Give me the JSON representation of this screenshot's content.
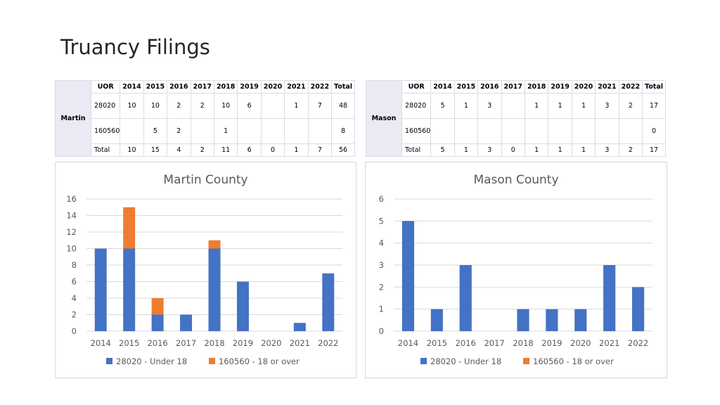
{
  "page": {
    "title": "Truancy Filings"
  },
  "tables": [
    {
      "label": "Martin",
      "header": [
        "UOR",
        "2014",
        "2015",
        "2016",
        "2017",
        "2018",
        "2019",
        "2020",
        "2021",
        "2022",
        "Total"
      ],
      "rows": [
        [
          "28020",
          "10",
          "10",
          "2",
          "2",
          "10",
          "6",
          "",
          "1",
          "7",
          "48"
        ],
        [
          "160560",
          "",
          "5",
          "2",
          "",
          "1",
          "",
          "",
          "",
          "",
          "8"
        ],
        [
          "Total",
          "10",
          "15",
          "4",
          "2",
          "11",
          "6",
          "0",
          "1",
          "7",
          "56"
        ]
      ]
    },
    {
      "label": "Mason",
      "header": [
        "UOR",
        "2014",
        "2015",
        "2016",
        "2017",
        "2018",
        "2019",
        "2020",
        "2021",
        "2022",
        "Total"
      ],
      "rows": [
        [
          "28020",
          "5",
          "1",
          "3",
          "",
          "1",
          "1",
          "1",
          "3",
          "2",
          "17"
        ],
        [
          "160560",
          "",
          "",
          "",
          "",
          "",
          "",
          "",
          "",
          "",
          "0"
        ],
        [
          "Total",
          "5",
          "1",
          "3",
          "0",
          "1",
          "1",
          "1",
          "3",
          "2",
          "17"
        ]
      ]
    }
  ],
  "colors": {
    "series1": "#4472c4",
    "series2": "#ed7d31",
    "grid": "#d9d9d9",
    "text": "#595959"
  },
  "chart_data": [
    {
      "type": "bar",
      "stacked": true,
      "title": "Martin County",
      "categories": [
        "2014",
        "2015",
        "2016",
        "2017",
        "2018",
        "2019",
        "2020",
        "2021",
        "2022"
      ],
      "series": [
        {
          "name": "28020 - Under 18",
          "values": [
            10,
            10,
            2,
            2,
            10,
            6,
            0,
            1,
            7
          ]
        },
        {
          "name": "160560 - 18 or over",
          "values": [
            0,
            5,
            2,
            0,
            1,
            0,
            0,
            0,
            0
          ]
        }
      ],
      "ylim": [
        0,
        16
      ],
      "yticks": [
        "0",
        "2",
        "4",
        "6",
        "8",
        "10",
        "12",
        "14",
        "16"
      ],
      "grid": true,
      "legend": "bottom"
    },
    {
      "type": "bar",
      "stacked": true,
      "title": "Mason County",
      "categories": [
        "2014",
        "2015",
        "2016",
        "2017",
        "2018",
        "2019",
        "2020",
        "2021",
        "2022"
      ],
      "series": [
        {
          "name": "28020 - Under 18",
          "values": [
            5,
            1,
            3,
            0,
            1,
            1,
            1,
            3,
            2
          ]
        },
        {
          "name": "160560 - 18 or over",
          "values": [
            0,
            0,
            0,
            0,
            0,
            0,
            0,
            0,
            0
          ]
        }
      ],
      "ylim": [
        0,
        6
      ],
      "yticks": [
        "0",
        "1",
        "2",
        "3",
        "4",
        "5",
        "6"
      ],
      "grid": true,
      "legend": "bottom"
    }
  ]
}
